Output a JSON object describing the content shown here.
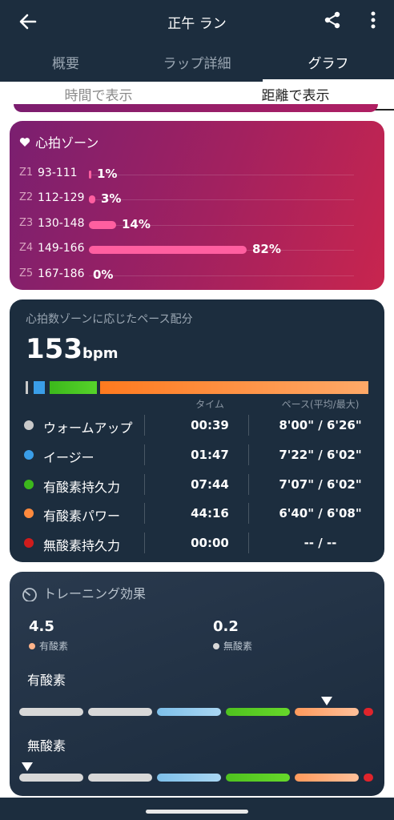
{
  "header": {
    "title": "正午 ラン",
    "back_icon": "arrow-left-icon",
    "share_icon": "share-icon",
    "more_icon": "more-vertical-icon"
  },
  "tabs": [
    {
      "label": "概要",
      "active": false
    },
    {
      "label": "ラップ詳細",
      "active": false
    },
    {
      "label": "グラフ",
      "active": true
    }
  ],
  "subtabs": [
    {
      "label": "時間で表示",
      "active": false
    },
    {
      "label": "距離で表示",
      "active": true
    }
  ],
  "heart_zones": {
    "title": "心拍ゾーン",
    "icon": "heart-icon",
    "zones": [
      {
        "name": "Z1",
        "range": "93-111",
        "percent": "1%",
        "value": 1
      },
      {
        "name": "Z2",
        "range": "112-129",
        "percent": "3%",
        "value": 3
      },
      {
        "name": "Z3",
        "range": "130-148",
        "percent": "14%",
        "value": 14
      },
      {
        "name": "Z4",
        "range": "149-166",
        "percent": "82%",
        "value": 82
      },
      {
        "name": "Z5",
        "range": "167-186",
        "percent": "0%",
        "value": 0
      }
    ]
  },
  "pace": {
    "title": "心拍数ゾーンに応じたペース配分",
    "bpm_value": "153",
    "bpm_unit": "bpm",
    "col_time": "タイム",
    "col_pace": "ペース(平均/最大)",
    "rows": [
      {
        "label": "ウォームアップ",
        "time": "00:39",
        "pace": "8'00\" / 6'26\"",
        "color": "#c9c9c9"
      },
      {
        "label": "イージー",
        "time": "01:47",
        "pace": "7'22\" / 6'02\"",
        "color": "#3a9ee8"
      },
      {
        "label": "有酸素持久力",
        "time": "07:44",
        "pace": "7'07\" / 6'02\"",
        "color": "#3cb81c"
      },
      {
        "label": "有酸素パワー",
        "time": "44:16",
        "pace": "6'40\" / 6'08\"",
        "color": "#ff8a3d"
      },
      {
        "label": "無酸素持久力",
        "time": "00:00",
        "pace": "-- / --",
        "color": "#d01c1c"
      }
    ]
  },
  "training": {
    "title": "トレーニング効果",
    "icon": "gauge-icon",
    "aerobic_value": "4.5",
    "aerobic_label": "有酸素",
    "anaerobic_value": "0.2",
    "anaerobic_label": "無酸素",
    "section_aerobic": "有酸素",
    "section_anaerobic": "無酸素",
    "aerobic_marker_segment": 4,
    "anaerobic_marker_segment": 0
  },
  "colors": {
    "aerobic_dot": "#ffb38a",
    "anaerobic_dot": "#d8d8d8",
    "zone_bar": "#ff5fa0"
  }
}
